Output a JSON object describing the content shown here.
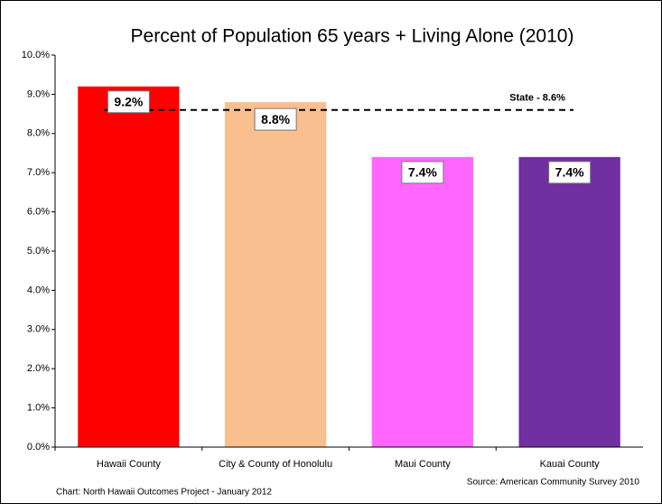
{
  "chart_data": {
    "type": "bar",
    "title": "Percent of Population 65 years + Living Alone  (2010)",
    "categories": [
      "Hawaii County",
      "City & County of Honolulu",
      "Maui County",
      "Kauai County"
    ],
    "values": [
      9.2,
      8.8,
      7.4,
      7.4
    ],
    "value_labels": [
      "9.2%",
      "8.8%",
      "7.4%",
      "7.4%"
    ],
    "colors": [
      "#ff0000",
      "#f9bf8f",
      "#ff66ff",
      "#7030a0"
    ],
    "ylim": [
      0,
      10
    ],
    "yticks": [
      {
        "value": 0,
        "label": "0.0%"
      },
      {
        "value": 1,
        "label": "1.0%"
      },
      {
        "value": 2,
        "label": "2.0%"
      },
      {
        "value": 3,
        "label": "3.0%"
      },
      {
        "value": 4,
        "label": "4.0%"
      },
      {
        "value": 5,
        "label": "5.0%"
      },
      {
        "value": 6,
        "label": "6.0%"
      },
      {
        "value": 7,
        "label": "7.0%"
      },
      {
        "value": 8,
        "label": "8.0%"
      },
      {
        "value": 9,
        "label": "9.0%"
      },
      {
        "value": 10,
        "label": "10.0%"
      }
    ],
    "reference_line": {
      "value": 8.6,
      "label": "State - 8.6%"
    },
    "source": "Source:  American  Community Survey 2010",
    "credit": "Chart:  North Hawaii Outcomes Project - January 2012"
  }
}
